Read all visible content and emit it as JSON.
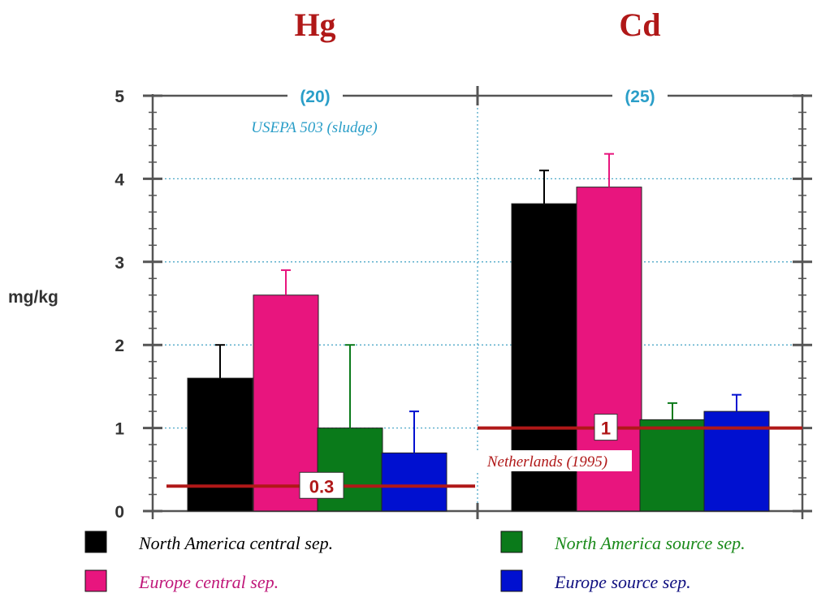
{
  "chart_data": {
    "type": "bar",
    "ylabel": "mg/kg",
    "ylim": [
      0,
      5
    ],
    "yticks": [
      0,
      1,
      2,
      3,
      4,
      5
    ],
    "grid": "horizontal dotted",
    "panels": [
      {
        "title": "Hg",
        "cap_label": "(20)",
        "cap_note": "USEPA 503 (sludge)",
        "reference": {
          "value": 0.3,
          "value_label": "0.3",
          "note": ""
        },
        "series_values": [
          1.6,
          2.6,
          1.0,
          0.7
        ],
        "errors": [
          2.0,
          2.9,
          2.0,
          1.2
        ]
      },
      {
        "title": "Cd",
        "cap_label": "(25)",
        "cap_note": "",
        "reference": {
          "value": 1.0,
          "value_label": "1",
          "note": "Netherlands (1995)"
        },
        "series_values": [
          3.7,
          3.9,
          1.1,
          1.2
        ],
        "errors": [
          4.1,
          4.3,
          1.3,
          1.4
        ]
      }
    ],
    "series": [
      {
        "name": "North America central sep.",
        "color": "#000000"
      },
      {
        "name": "Europe central sep.",
        "color": "#e8157e"
      },
      {
        "name": "North America source sep.",
        "color": "#0a7a1a"
      },
      {
        "name": "Europe source sep.",
        "color": "#0010d0"
      }
    ],
    "legend_placement": "bottom",
    "colors": {
      "title": "#b01818",
      "axis": "#555555",
      "grid": "#4fa8c8",
      "cap_text": "#2a9ec8",
      "reference_line": "#b01818",
      "legend_text": [
        "#000000",
        "#c0187a",
        "#1a8a1a",
        "#101080"
      ]
    }
  }
}
